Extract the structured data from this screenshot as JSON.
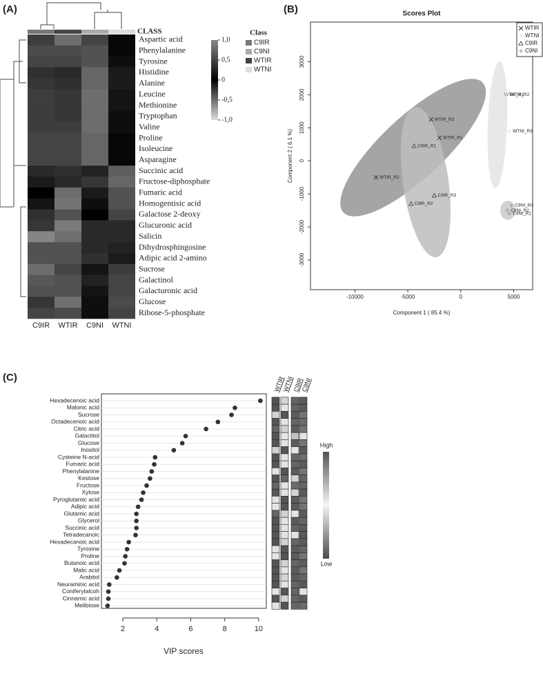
{
  "chart_data": [
    {
      "type": "heatmap",
      "panel": "(A)",
      "class_label": "CLASS",
      "columns": [
        "C9IR",
        "WTIR",
        "C9NI",
        "WTNI"
      ],
      "rows": [
        "Aspartic acid",
        "Phenylalanine",
        "Tyrosine",
        "Histidine",
        "Alanine",
        "Leucine",
        "Methionine",
        "Tryptophan",
        "Valine",
        "Proline",
        "Isoleucine",
        "Asparagine",
        "Succinic acid",
        "Fructose-diphosphate",
        "Fumaric acid",
        "Homogentisic acid",
        "Galactose 2-deoxy",
        "Glucuronic acid",
        "Salicin",
        "Dihydrosphingosine",
        "Adipic acid 2-amino",
        "Sucrose",
        "Galactinol",
        "Galacturonic acid",
        "Glucose",
        "Ribose-5-phosphate"
      ],
      "values": [
        [
          0.45,
          0.8,
          0.5,
          0.05
        ],
        [
          0.55,
          0.55,
          0.6,
          0.05
        ],
        [
          0.5,
          0.5,
          0.6,
          0.1
        ],
        [
          0.35,
          0.3,
          0.75,
          0.2
        ],
        [
          0.4,
          0.35,
          0.75,
          0.2
        ],
        [
          0.45,
          0.4,
          0.8,
          0.15
        ],
        [
          0.45,
          0.4,
          0.8,
          0.15
        ],
        [
          0.45,
          0.4,
          0.8,
          0.1
        ],
        [
          0.45,
          0.45,
          0.8,
          0.1
        ],
        [
          0.5,
          0.5,
          0.75,
          0.05
        ],
        [
          0.5,
          0.5,
          0.75,
          0.05
        ],
        [
          0.5,
          0.5,
          0.75,
          0.05
        ],
        [
          0.3,
          0.35,
          0.25,
          0.7
        ],
        [
          0.2,
          0.3,
          0.4,
          0.75
        ],
        [
          0.0,
          0.8,
          0.2,
          0.6
        ],
        [
          0.15,
          0.85,
          0.1,
          0.6
        ],
        [
          0.35,
          0.6,
          0.0,
          0.5
        ],
        [
          0.4,
          -0.55,
          0.3,
          0.3
        ],
        [
          -0.6,
          -0.5,
          0.3,
          0.3
        ],
        [
          0.6,
          0.6,
          0.3,
          0.25
        ],
        [
          0.6,
          0.6,
          0.35,
          0.2
        ],
        [
          0.8,
          0.5,
          0.15,
          0.45
        ],
        [
          0.65,
          0.6,
          0.25,
          0.5
        ],
        [
          0.6,
          0.6,
          0.15,
          0.5
        ],
        [
          0.4,
          -0.5,
          0.1,
          0.55
        ],
        [
          0.5,
          0.55,
          0.1,
          0.5
        ]
      ],
      "color_scale": [
        "#dddddd",
        "#000000",
        "#888888"
      ],
      "clim": [
        -1,
        1
      ],
      "cticks": [
        {
          "value": 1,
          "label": "1,0"
        },
        {
          "value": 0.5,
          "label": "0,5"
        },
        0,
        {
          "value": -0.5,
          "label": "-0,5"
        },
        {
          "value": -1,
          "label": "-1,0"
        }
      ],
      "legend_title": "Class",
      "legend": [
        {
          "name": "C9IR",
          "color": "#777777"
        },
        {
          "name": "C9NI",
          "color": "#aaaaaa"
        },
        {
          "name": "WTIR",
          "color": "#444444"
        },
        {
          "name": "WTNI",
          "color": "#dddddd"
        }
      ]
    },
    {
      "type": "scatter",
      "panel": "(B)",
      "title": "Scores Plot",
      "xlabel": "Component 1 ( 85.4 %)",
      "ylabel": "Component 2 ( 6.1 %)",
      "xlim": [
        -14200,
        6800
      ],
      "ylim": [
        -3900,
        4200
      ],
      "xticks": [
        -10000,
        -5000,
        0,
        5000
      ],
      "yticks": [
        -3000,
        -2000,
        -1000,
        0,
        1000,
        2000,
        3000
      ],
      "legend": "top-right",
      "series": [
        {
          "name": "WTIR",
          "marker": "x",
          "color": "#333333",
          "x": [
            -2800,
            -2000,
            -8000
          ],
          "y": [
            1250,
            700,
            -500
          ],
          "labels": [
            "WTIR_R3",
            "WTIR_R1",
            "WTIR_R2"
          ]
        },
        {
          "name": "WTNI",
          "marker": "plus",
          "color": "#e0e0e0",
          "x": [
            3800,
            4300,
            4600
          ],
          "y": [
            2000,
            2000,
            900
          ],
          "labels": [
            "WTNI_R1",
            "WTNI_R2",
            "WTNI_R3"
          ]
        },
        {
          "name": "C9IR",
          "marker": "triangle",
          "color": "#555555",
          "x": [
            -4400,
            -2500,
            -4700
          ],
          "y": [
            450,
            -1050,
            -1300
          ],
          "labels": [
            "C9IR_R1",
            "C9IR_R3",
            "C9IR_R2"
          ]
        },
        {
          "name": "C9NI",
          "marker": "plus",
          "color": "#999999",
          "x": [
            4800,
            4400,
            4600
          ],
          "y": [
            -1350,
            -1500,
            -1600
          ],
          "labels": [
            "C9NI_R3",
            "C9NI_R2",
            "C9NI_R1"
          ]
        }
      ]
    },
    {
      "type": "dot",
      "panel": "(C)",
      "xlabel": "VIP scores",
      "color": "#333333",
      "xlim": [
        0.74,
        10.45
      ],
      "xticks": [
        2,
        4,
        6,
        8,
        10
      ],
      "categories": [
        "Hexadecenoic acid",
        "Malonic acid",
        "Sucrose",
        "Octadecenoic acid",
        "Citric acid",
        "Galactitol",
        "Glucose",
        "Inositol",
        "Cysteine  N-acid",
        "Fumaric acid",
        "Phenylalanine",
        "Kestose",
        "Fructose",
        "Xylose",
        "Pyroglutamic acid",
        "Adipic acid",
        "Glutamic acid",
        "Glycerol",
        "Succinic acid",
        "Tetradecanoic",
        "Hexadecanoic  acid",
        "Tyrosine",
        "Proline",
        "Butanoic acid",
        "Malic acid",
        "Arabitol",
        "Neuraminic acid",
        "Coniferylalcoh",
        "Cinnamic acid",
        "Melibiose"
      ],
      "values": [
        10.1,
        8.6,
        8.4,
        7.6,
        6.9,
        5.7,
        5.5,
        5.0,
        3.9,
        3.85,
        3.7,
        3.6,
        3.4,
        3.2,
        3.1,
        2.9,
        2.8,
        2.8,
        2.8,
        2.75,
        2.35,
        2.25,
        2.15,
        2.1,
        1.8,
        1.65,
        1.2,
        1.15,
        1.15,
        1.1
      ],
      "heatmap_columns": [
        "WTIR",
        "WTNI",
        "C9IR",
        "C9NI"
      ],
      "heatmap_values": [
        [
          1,
          0.2,
          0.9,
          -0.9
        ],
        [
          1,
          -0.1,
          0.9,
          -0.9
        ],
        [
          -0.2,
          1,
          -0.9,
          0.8
        ],
        [
          1,
          0.1,
          0.9,
          -0.8
        ],
        [
          0.9,
          -0.2,
          -0.9,
          0.8
        ],
        [
          1,
          0.1,
          -0.3,
          0.1
        ],
        [
          1,
          0.1,
          -0.9,
          0.8
        ],
        [
          -0.2,
          1,
          0.1,
          -0.9
        ],
        [
          1,
          -0.1,
          0.9,
          -0.8
        ],
        [
          1,
          0.1,
          0.9,
          -0.9
        ],
        [
          -0.1,
          1,
          -0.9,
          0.8
        ],
        [
          1,
          0.9,
          -0.2,
          0.9
        ],
        [
          0.9,
          0.1,
          -0.8,
          0.9
        ],
        [
          1,
          -0.1,
          0.2,
          -0.9
        ],
        [
          0.1,
          1,
          -0.9,
          0.8
        ],
        [
          0.1,
          1,
          -0.9,
          0.8
        ],
        [
          0.9,
          -0.2,
          0.1,
          -0.9
        ],
        [
          1,
          0.1,
          -0.9,
          0.9
        ],
        [
          1,
          -0.1,
          0.9,
          -0.9
        ],
        [
          1,
          0.1,
          -0.1,
          -0.9
        ],
        [
          1,
          0.2,
          0.9,
          -0.9
        ],
        [
          -0.1,
          1,
          -0.9,
          0.9
        ],
        [
          0.1,
          1,
          -0.9,
          0.8
        ],
        [
          1,
          -0.2,
          0.9,
          -0.9
        ],
        [
          1,
          0.1,
          -0.9,
          0.8
        ],
        [
          1,
          0.2,
          -0.9,
          0.9
        ],
        [
          1,
          -0.1,
          0.9,
          -0.9
        ],
        [
          -0.1,
          1,
          0.9,
          0.1
        ],
        [
          1,
          -0.2,
          0.9,
          -0.9
        ],
        [
          -0.1,
          1,
          0.9,
          -0.8
        ]
      ],
      "heatmap_clim": [
        -1,
        1
      ],
      "heatmap_color_scale": [
        "#4a4a4a",
        "#f4f4f4",
        "#555555"
      ],
      "colorbar_high": "High",
      "colorbar_low": "Low"
    }
  ]
}
